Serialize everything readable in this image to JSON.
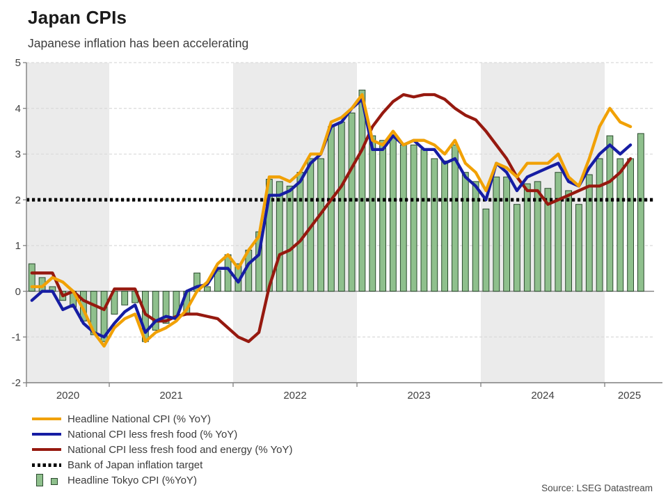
{
  "header": {
    "title": "Japan CPIs",
    "subtitle": "Japanese inflation has been accelerating"
  },
  "source": "Source: LSEG Datastream",
  "colors": {
    "headline_national": "#F1A105",
    "core_national": "#161DA3",
    "corecore_national": "#96190F",
    "target": "#000000",
    "tokyo_fill": "#8FC08D",
    "tokyo_border": "#2B4A2E",
    "year_band": "#EBEBEB",
    "grid": "#DADADA",
    "axis": "#7F7F7F",
    "tick_text": "#404040"
  },
  "legend": [
    {
      "label": "Headline National CPI (% YoY)",
      "marker": "line",
      "color": "#F1A105"
    },
    {
      "label": "National CPI less fresh food (% YoY)",
      "marker": "line",
      "color": "#161DA3"
    },
    {
      "label": "National CPI less fresh food and energy (% YoY)",
      "marker": "line",
      "color": "#96190F"
    },
    {
      "label": "Bank of Japan inflation target",
      "marker": "dotted",
      "color": "#000000"
    },
    {
      "label": "Headline Tokyo CPI (%YoY)",
      "marker": "bars",
      "color": "#8FC08D"
    }
  ],
  "chart_data": {
    "type": "bar+line combo, monthly time series",
    "title": "Japan CPIs",
    "subtitle": "Japanese inflation has been accelerating",
    "ylim": [
      -2,
      5
    ],
    "y_ticks": [
      5,
      4,
      3,
      2,
      1,
      0,
      -1,
      -2
    ],
    "x_year_labels": [
      "2020",
      "2021",
      "2022",
      "2023",
      "2024",
      "2025"
    ],
    "grid": "horizontal dashed gridlines, alternating gray year bands",
    "legend_position": "bottom-left",
    "target_line": {
      "name": "Bank of Japan inflation target",
      "value": 2,
      "style": "black dotted"
    },
    "months": [
      "2020-05",
      "2020-06",
      "2020-07",
      "2020-08",
      "2020-09",
      "2020-10",
      "2020-11",
      "2020-12",
      "2021-01",
      "2021-02",
      "2021-03",
      "2021-04",
      "2021-05",
      "2021-06",
      "2021-07",
      "2021-08",
      "2021-09",
      "2021-10",
      "2021-11",
      "2021-12",
      "2022-01",
      "2022-02",
      "2022-03",
      "2022-04",
      "2022-05",
      "2022-06",
      "2022-07",
      "2022-08",
      "2022-09",
      "2022-10",
      "2022-11",
      "2022-12",
      "2023-01",
      "2023-02",
      "2023-03",
      "2023-04",
      "2023-05",
      "2023-06",
      "2023-07",
      "2023-08",
      "2023-09",
      "2023-10",
      "2023-11",
      "2023-12",
      "2024-01",
      "2024-02",
      "2024-03",
      "2024-04",
      "2024-05",
      "2024-06",
      "2024-07",
      "2024-08",
      "2024-09",
      "2024-10",
      "2024-11",
      "2024-12",
      "2025-01",
      "2025-02",
      "2025-03",
      "2025-04"
    ],
    "series": [
      {
        "name": "Headline National CPI (% YoY)",
        "type": "line",
        "color": "#F1A105",
        "values": [
          0.1,
          0.1,
          0.3,
          0.2,
          0.0,
          -0.4,
          -0.9,
          -1.2,
          -0.8,
          -0.6,
          -0.5,
          -1.1,
          -0.9,
          -0.8,
          -0.65,
          -0.4,
          0.0,
          0.2,
          0.6,
          0.8,
          0.5,
          0.9,
          1.2,
          2.5,
          2.5,
          2.4,
          2.6,
          3.0,
          3.0,
          3.7,
          3.8,
          4.0,
          4.3,
          3.3,
          3.2,
          3.5,
          3.2,
          3.3,
          3.3,
          3.2,
          3.0,
          3.3,
          2.8,
          2.6,
          2.2,
          2.8,
          2.7,
          2.5,
          2.8,
          2.8,
          2.8,
          3.0,
          2.5,
          2.3,
          2.9,
          3.6,
          4.0,
          3.7,
          3.6,
          null
        ]
      },
      {
        "name": "National CPI less fresh food (% YoY)",
        "type": "line",
        "color": "#161DA3",
        "values": [
          -0.2,
          0.0,
          0.0,
          -0.4,
          -0.3,
          -0.7,
          -0.9,
          -1.0,
          -0.7,
          -0.45,
          -0.3,
          -0.9,
          -0.65,
          -0.55,
          -0.6,
          0.0,
          0.1,
          0.15,
          0.5,
          0.5,
          0.2,
          0.6,
          0.8,
          2.1,
          2.1,
          2.2,
          2.4,
          2.8,
          3.0,
          3.6,
          3.7,
          4.0,
          4.2,
          3.1,
          3.1,
          3.4,
          3.2,
          3.3,
          3.1,
          3.1,
          2.8,
          2.9,
          2.5,
          2.3,
          2.0,
          2.8,
          2.6,
          2.2,
          2.5,
          2.6,
          2.7,
          2.8,
          2.4,
          2.3,
          2.7,
          3.0,
          3.2,
          3.0,
          3.2,
          null
        ]
      },
      {
        "name": "National CPI less fresh food and energy (% YoY)",
        "type": "line",
        "color": "#96190F",
        "values": [
          0.4,
          0.4,
          0.4,
          -0.1,
          0.0,
          -0.2,
          -0.3,
          -0.4,
          0.05,
          0.05,
          0.05,
          -0.5,
          -0.65,
          -0.65,
          -0.55,
          -0.5,
          -0.5,
          -0.55,
          -0.6,
          -0.8,
          -1.0,
          -1.1,
          -0.9,
          0.1,
          0.8,
          0.9,
          1.1,
          1.4,
          1.7,
          2.0,
          2.3,
          2.7,
          3.1,
          3.6,
          3.9,
          4.15,
          4.3,
          4.25,
          4.3,
          4.3,
          4.2,
          4.0,
          3.85,
          3.75,
          3.5,
          3.2,
          2.9,
          2.5,
          2.2,
          2.2,
          1.9,
          2.0,
          2.1,
          2.2,
          2.3,
          2.3,
          2.4,
          2.6,
          2.9,
          null
        ]
      },
      {
        "name": "Headline Tokyo CPI (%YoY)",
        "type": "bar",
        "color": "#8FC08D",
        "border": "#2B4A2E",
        "values": [
          0.6,
          0.3,
          0.1,
          -0.2,
          -0.35,
          -0.65,
          -0.95,
          -1.1,
          -0.5,
          -0.3,
          -0.25,
          -1.1,
          -0.85,
          -0.7,
          -0.6,
          -0.5,
          0.4,
          0.1,
          0.45,
          0.8,
          0.6,
          0.9,
          1.3,
          2.45,
          2.4,
          2.3,
          2.6,
          2.9,
          2.9,
          3.6,
          3.7,
          3.9,
          4.4,
          3.4,
          3.3,
          3.4,
          3.2,
          3.2,
          3.1,
          2.9,
          2.85,
          3.2,
          2.6,
          2.4,
          1.8,
          2.5,
          2.5,
          1.9,
          2.35,
          2.4,
          2.25,
          2.6,
          2.2,
          1.9,
          2.55,
          2.9,
          3.4,
          2.9,
          2.9,
          3.45
        ]
      }
    ]
  }
}
